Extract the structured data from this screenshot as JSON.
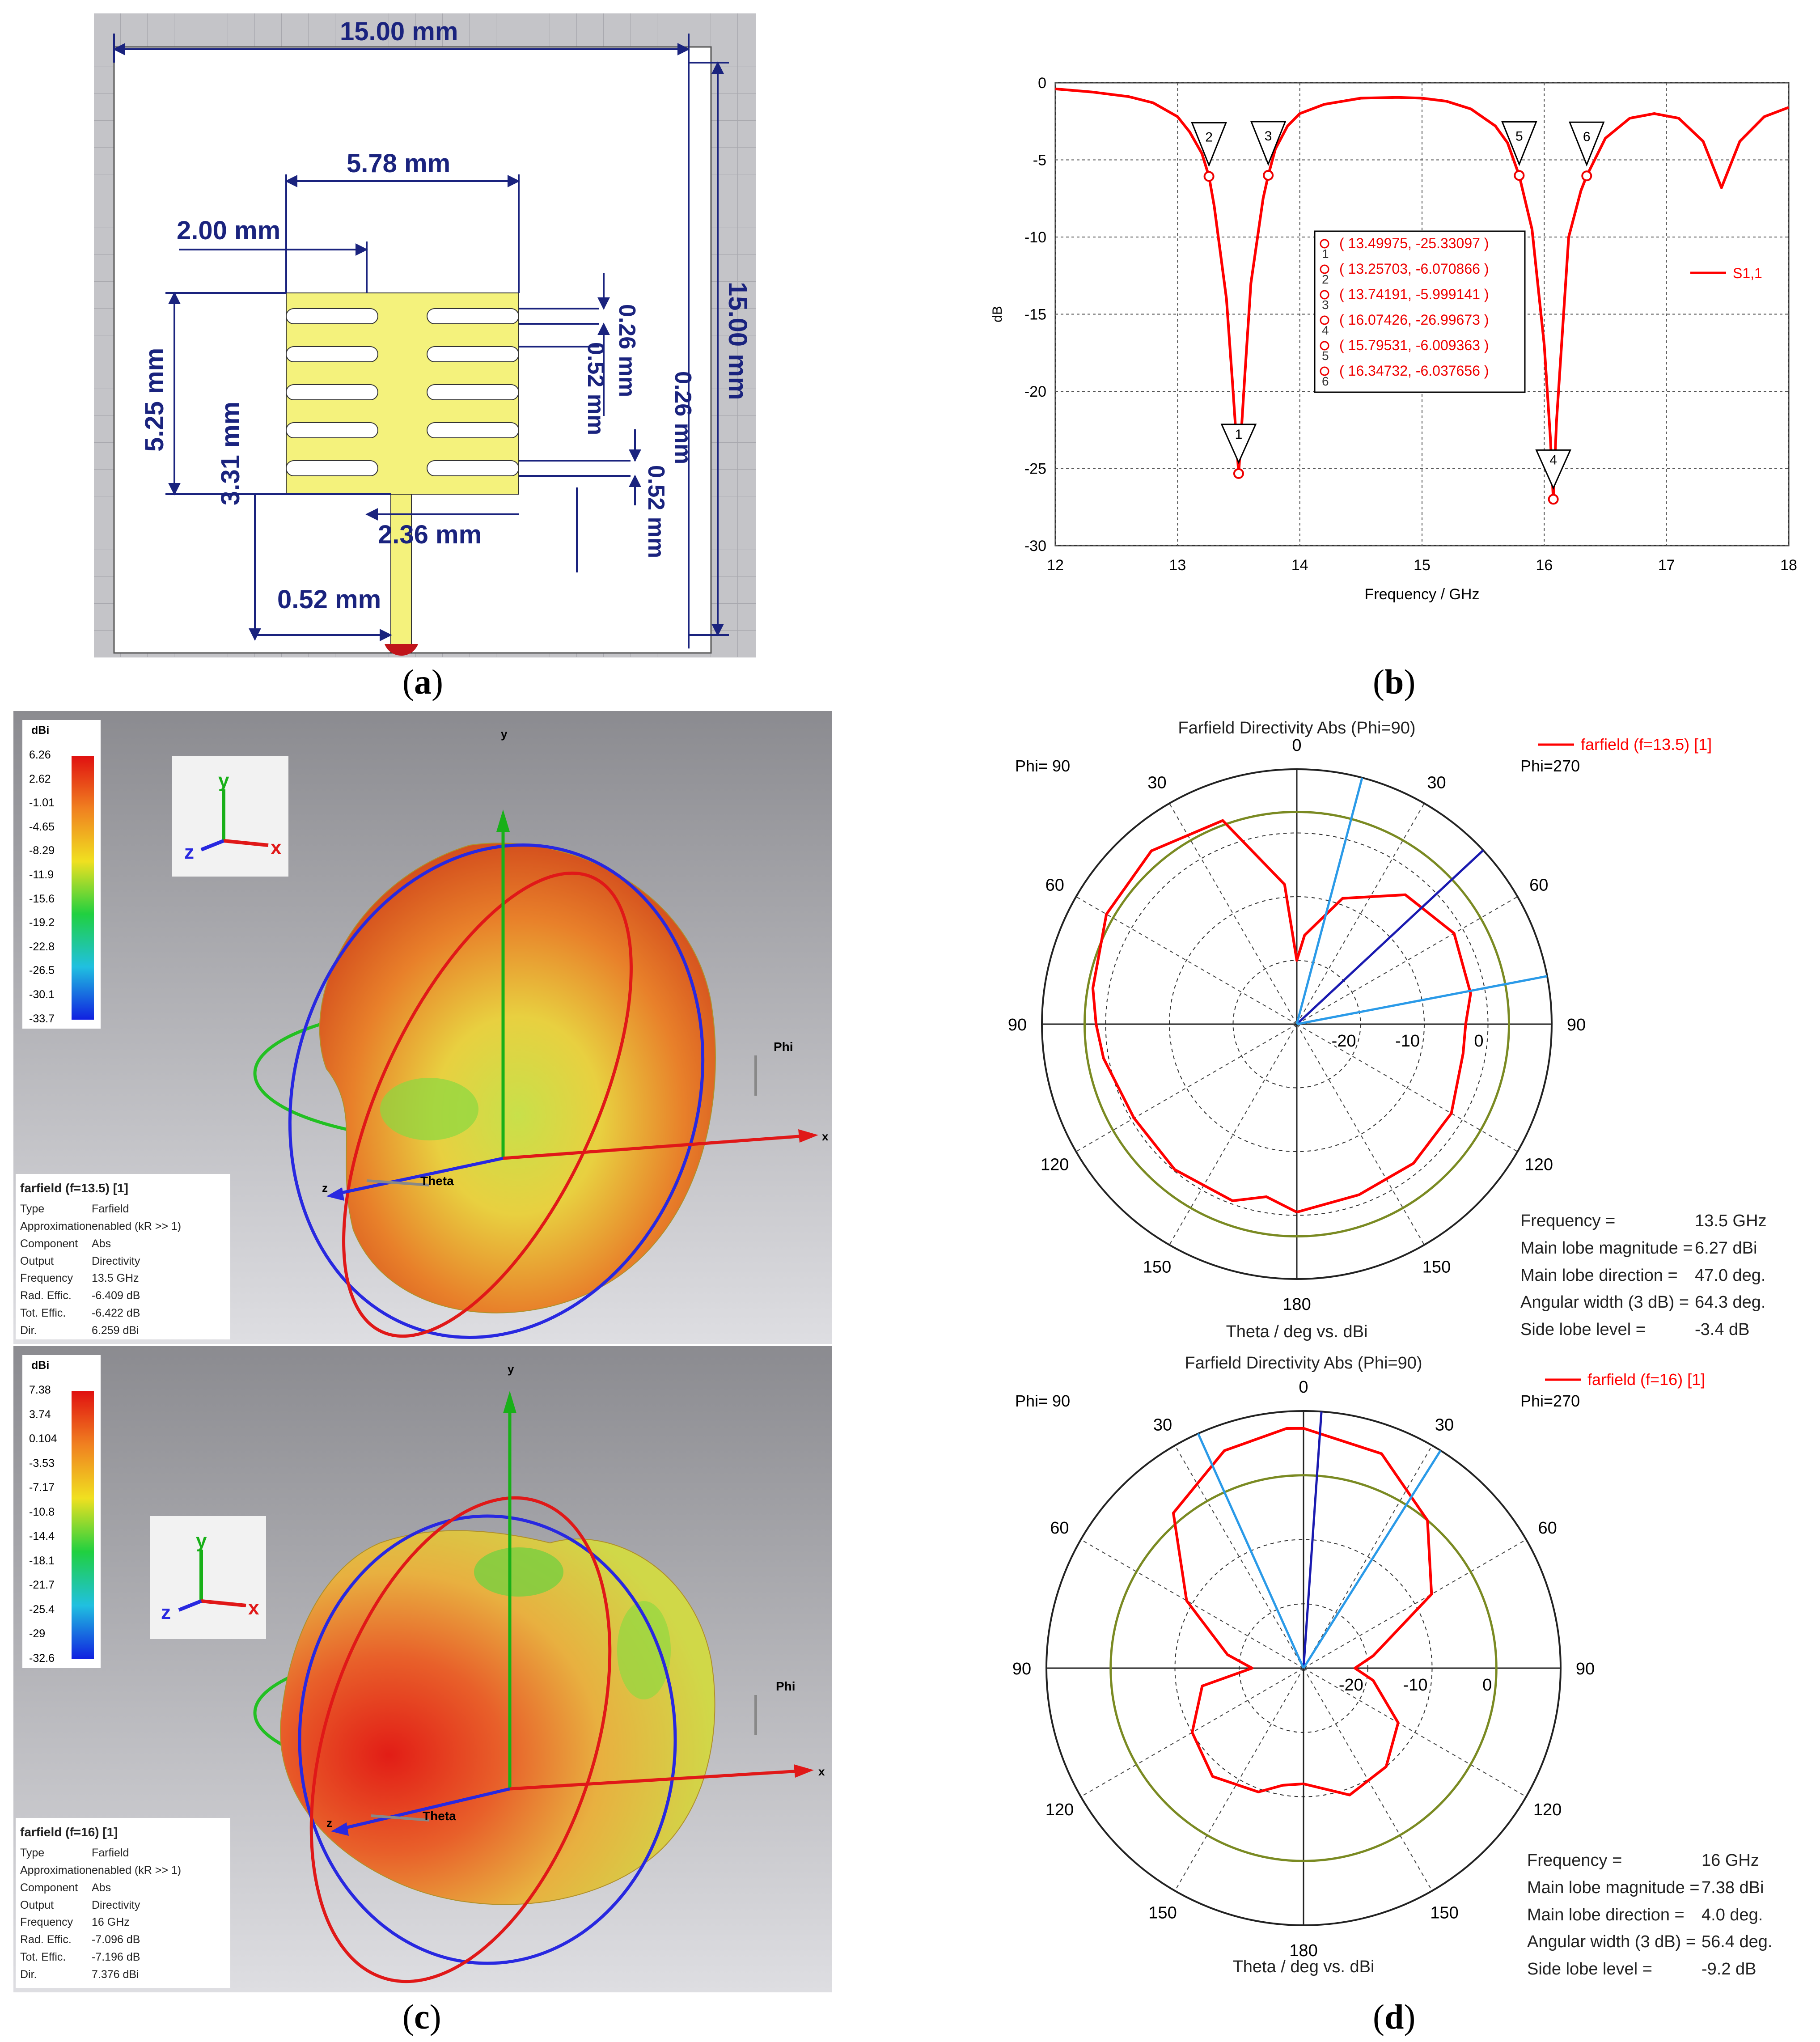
{
  "captions": {
    "a": "a",
    "b": "b",
    "c": "c",
    "d": "d"
  },
  "panel_a": {
    "dims": {
      "width_top": "15.00 mm",
      "height_right": "15.00 mm",
      "patch_width": "5.78 mm",
      "offset_left": "2.00 mm",
      "patch_height": "5.25 mm",
      "slot_h1": "3.31 mm",
      "slot_w1": "0.26 mm",
      "slot_w2": "0.52 mm",
      "slot_w3": "0.26 mm",
      "slot_w4": "0.52 mm",
      "stub_len": "2.36 mm",
      "feed_w": "0.52 mm"
    },
    "colors": {
      "bg": "#c0c0c4",
      "board": "#ffffff",
      "patch": "#f2f27a",
      "dim": "#1a237e"
    }
  },
  "chart_data": [
    {
      "type": "line",
      "title": "",
      "xlabel": "Frequency / GHz",
      "ylabel": "dB",
      "xlim": [
        12,
        18
      ],
      "ylim": [
        -30,
        0
      ],
      "xticks": [
        "12",
        "13",
        "14",
        "15",
        "16",
        "17",
        "18"
      ],
      "yticks": [
        "0",
        "-5",
        "-10",
        "-15",
        "-20",
        "-25",
        "-30"
      ],
      "series": [
        {
          "name": "S1,1",
          "color": "#ff0000",
          "x": [
            12.0,
            12.3,
            12.6,
            12.8,
            13.0,
            13.1,
            13.2,
            13.257,
            13.3,
            13.4,
            13.45,
            13.5,
            13.55,
            13.6,
            13.7,
            13.742,
            13.8,
            13.9,
            14.0,
            14.2,
            14.5,
            14.8,
            15.0,
            15.2,
            15.4,
            15.6,
            15.7,
            15.795,
            15.9,
            16.0,
            16.05,
            16.074,
            16.1,
            16.2,
            16.3,
            16.347,
            16.5,
            16.7,
            16.9,
            17.1,
            17.3,
            17.4,
            17.45,
            17.5,
            17.6,
            17.8,
            18.0
          ],
          "values": [
            -0.4,
            -0.6,
            -0.9,
            -1.3,
            -2.2,
            -3.2,
            -4.6,
            -6.07,
            -8.0,
            -14.0,
            -19.5,
            -25.33,
            -19.0,
            -13.0,
            -7.5,
            -6.0,
            -4.3,
            -2.8,
            -2.0,
            -1.4,
            -1.0,
            -0.95,
            -1.0,
            -1.2,
            -1.7,
            -2.8,
            -3.9,
            -6.01,
            -9.5,
            -17.0,
            -23.0,
            -27.0,
            -22.0,
            -10.0,
            -7.0,
            -6.04,
            -3.6,
            -2.3,
            -2.0,
            -2.3,
            -3.8,
            -5.8,
            -6.8,
            -5.8,
            -3.8,
            -2.2,
            -1.6
          ]
        }
      ],
      "markers": [
        {
          "id": "1",
          "x": 13.49975,
          "y": -25.33097,
          "label": "( 13.49975, -25.33097 )"
        },
        {
          "id": "2",
          "x": 13.25703,
          "y": -6.070866,
          "label": "( 13.25703, -6.070866 )"
        },
        {
          "id": "3",
          "x": 13.74191,
          "y": -5.999141,
          "label": "( 13.74191, -5.999141 )"
        },
        {
          "id": "4",
          "x": 16.07426,
          "y": -26.99673,
          "label": "( 16.07426, -26.99673 )"
        },
        {
          "id": "5",
          "x": 15.79531,
          "y": -6.009363,
          "label": "( 15.79531, -6.009363 )"
        },
        {
          "id": "6",
          "x": 16.34732,
          "y": -6.037656,
          "label": "( 16.34732, -6.037656 )"
        }
      ],
      "legend": "right",
      "grid": true
    },
    {
      "type": "polar",
      "title": "Farfield Directivity Abs (Phi=90)",
      "xlabel": "Theta / deg vs. dBi",
      "rlim": [
        -30,
        10
      ],
      "rticks": [
        "-20",
        "-10",
        "0"
      ],
      "angle_labels": [
        "0",
        "30",
        "60",
        "90",
        "120",
        "150",
        "180",
        "150",
        "120",
        "90",
        "60",
        "30"
      ],
      "left_label": "Phi= 90",
      "right_label": "Phi=270",
      "series": [
        {
          "name": "farfield (f=13.5) [1]",
          "color": "#ff0000",
          "theta_deg": [
            -180,
            -160,
            -140,
            -120,
            -100,
            -90,
            -80,
            -60,
            -40,
            -20,
            -5,
            0,
            5,
            20,
            40,
            60,
            80,
            90,
            100,
            120,
            140,
            160,
            170,
            180
          ],
          "values": [
            -0.5,
            -1.5,
            -1.5,
            -2.0,
            -3.5,
            -3.5,
            -2.3,
            -1.5,
            -3.5,
            -9.0,
            -16.0,
            -20.0,
            -8.0,
            4.0,
            5.5,
            4.5,
            2.5,
            1.5,
            0.8,
            -0.5,
            -0.2,
            -0.5,
            -2.5,
            -0.5
          ]
        }
      ],
      "reference_circle_dbi": 3.3,
      "info": {
        "frequency": "13.5 GHz",
        "main_lobe_magnitude": "6.27 dBi",
        "main_lobe_direction": "47.0 deg.",
        "angular_width": "64.3 deg.",
        "side_lobe_level": "-3.4 dB"
      },
      "grid": true
    },
    {
      "type": "polar",
      "title": "Farfield Directivity Abs (Phi=90)",
      "xlabel": "Theta / deg vs. dBi",
      "rlim": [
        -30,
        10
      ],
      "rticks": [
        "-20",
        "-10",
        "0"
      ],
      "angle_labels": [
        "0",
        "30",
        "60",
        "90",
        "120",
        "150",
        "180",
        "150",
        "120",
        "90",
        "60",
        "30"
      ],
      "left_label": "Phi= 90",
      "right_label": "Phi=270",
      "series": [
        {
          "name": "farfield (f=16) [1]",
          "color": "#ff0000",
          "theta_deg": [
            -180,
            -160,
            -140,
            -120,
            -100,
            -90,
            -80,
            -60,
            -40,
            -20,
            0,
            4,
            20,
            40,
            60,
            80,
            90,
            100,
            120,
            140,
            160,
            170,
            180
          ],
          "values": [
            -12.0,
            -9.0,
            -10.0,
            -13.0,
            -19.0,
            -22.0,
            -19.0,
            -7.0,
            0.0,
            5.5,
            7.3,
            7.38,
            6.0,
            1.5,
            -9.0,
            -18.0,
            -22.0,
            -14.0,
            -10.0,
            -8.0,
            -9.5,
            -11.5,
            -12.0
          ]
        }
      ],
      "reference_circle_dbi": 0.0,
      "info": {
        "frequency": "16 GHz",
        "main_lobe_magnitude": "7.38 dBi",
        "main_lobe_direction": "4.0 deg.",
        "angular_width": "56.4 deg.",
        "side_lobe_level": "-9.2 dB"
      },
      "grid": true
    }
  ],
  "farfield_3d": [
    {
      "scale_title": "dBi",
      "scale_labels": [
        "6.26",
        "2.62",
        "-1.01",
        "-4.65",
        "-8.29",
        "-11.9",
        "-15.6",
        "-19.2",
        "-22.8",
        "-26.5",
        "-30.1",
        "-33.7"
      ],
      "title": "farfield (f=13.5) [1]",
      "axis_labels": {
        "x": "x",
        "y": "y",
        "z": "z",
        "theta": "Theta",
        "phi": "Phi"
      },
      "props": [
        {
          "k": "Type",
          "v": "Farfield"
        },
        {
          "k": "Approximation",
          "v": "enabled (kR >> 1)"
        },
        {
          "k": "Component",
          "v": "Abs"
        },
        {
          "k": "Output",
          "v": "Directivity"
        },
        {
          "k": "Frequency",
          "v": "13.5 GHz"
        },
        {
          "k": "Rad. Effic.",
          "v": "-6.409 dB"
        },
        {
          "k": "Tot. Effic.",
          "v": "-6.422 dB"
        },
        {
          "k": "Dir.",
          "v": "6.259 dBi"
        }
      ]
    },
    {
      "scale_title": "dBi",
      "scale_labels": [
        "7.38",
        "3.74",
        "0.104",
        "-3.53",
        "-7.17",
        "-10.8",
        "-14.4",
        "-18.1",
        "-21.7",
        "-25.4",
        "-29",
        "-32.6"
      ],
      "title": "farfield (f=16) [1]",
      "axis_labels": {
        "x": "x",
        "y": "y",
        "z": "z",
        "theta": "Theta",
        "phi": "Phi"
      },
      "props": [
        {
          "k": "Type",
          "v": "Farfield"
        },
        {
          "k": "Approximation",
          "v": "enabled (kR >> 1)"
        },
        {
          "k": "Component",
          "v": "Abs"
        },
        {
          "k": "Output",
          "v": "Directivity"
        },
        {
          "k": "Frequency",
          "v": "16 GHz"
        },
        {
          "k": "Rad. Effic.",
          "v": "-7.096 dB"
        },
        {
          "k": "Tot. Effic.",
          "v": "-7.196 dB"
        },
        {
          "k": "Dir.",
          "v": "7.376 dBi"
        }
      ]
    }
  ],
  "info_labels": {
    "frequency": "Frequency =",
    "main_lobe_magnitude": "Main lobe magnitude =",
    "main_lobe_direction": "Main lobe direction =",
    "angular_width": "Angular width (3 dB) =",
    "side_lobe_level": "Side lobe level ="
  }
}
